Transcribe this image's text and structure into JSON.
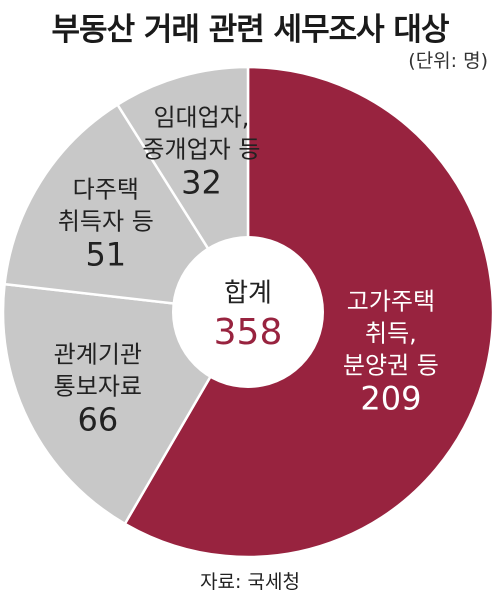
{
  "title": "부동산 거래 관련 세무조사 대상",
  "unit": "(단위: 명)",
  "source": "자료: 국세청",
  "colors": {
    "highlight": "#98233f",
    "gray": "#c8c8c8",
    "total_value": "#98233f",
    "label_dark": "#222222",
    "label_light": "#ffffff"
  },
  "chart_data": {
    "type": "pie",
    "style": "donut",
    "title": "부동산 거래 관련 세무조사 대상",
    "unit": "(단위: 명)",
    "center_label": "합계",
    "total": 358,
    "slices": [
      {
        "label_lines": [
          "고가주택",
          "취득,",
          "분양권 등"
        ],
        "value": 209,
        "highlight": true
      },
      {
        "label_lines": [
          "관계기관",
          "통보자료"
        ],
        "value": 66,
        "highlight": false
      },
      {
        "label_lines": [
          "다주택",
          "취득자 등"
        ],
        "value": 51,
        "highlight": false
      },
      {
        "label_lines": [
          "임대업자,",
          "중개업자 등"
        ],
        "value": 32,
        "highlight": false
      }
    ]
  }
}
